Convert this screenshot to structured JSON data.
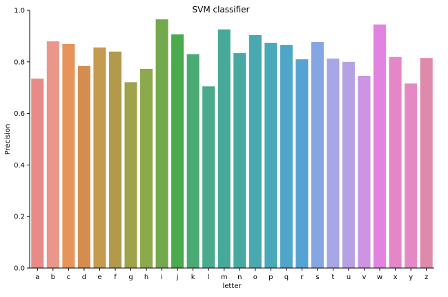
{
  "chart_data": {
    "type": "bar",
    "title": "SVM classifier",
    "xlabel": "letter",
    "ylabel": "Precision",
    "ylim": [
      0,
      1.0
    ],
    "yticks": [
      "0.0",
      "0.2",
      "0.4",
      "0.6",
      "0.8",
      "1.0"
    ],
    "grid": false,
    "categories": [
      "a",
      "b",
      "c",
      "d",
      "e",
      "f",
      "g",
      "h",
      "i",
      "j",
      "k",
      "l",
      "m",
      "n",
      "o",
      "p",
      "q",
      "r",
      "s",
      "t",
      "u",
      "v",
      "w",
      "x",
      "y",
      "z"
    ],
    "values": [
      0.735,
      0.88,
      0.869,
      0.784,
      0.856,
      0.84,
      0.721,
      0.773,
      0.965,
      0.907,
      0.83,
      0.705,
      0.926,
      0.834,
      0.904,
      0.874,
      0.866,
      0.81,
      0.877,
      0.813,
      0.8,
      0.746,
      0.945,
      0.819,
      0.716,
      0.815
    ],
    "colors": [
      "#e88a85",
      "#eb968a",
      "#e6945a",
      "#d48d4f",
      "#c59b4f",
      "#b39a4a",
      "#9ea34c",
      "#8ca94b",
      "#74a84c",
      "#4aab4c",
      "#4aaa74",
      "#4aaa8c",
      "#47a99a",
      "#48a9a2",
      "#4aa9b0",
      "#49a8b9",
      "#4fa6c8",
      "#56a3d3",
      "#84a6e3",
      "#a7a7e8",
      "#b6a1e5",
      "#cc94e3",
      "#e283e2",
      "#e586c9",
      "#e589c4",
      "#e08aab"
    ]
  }
}
